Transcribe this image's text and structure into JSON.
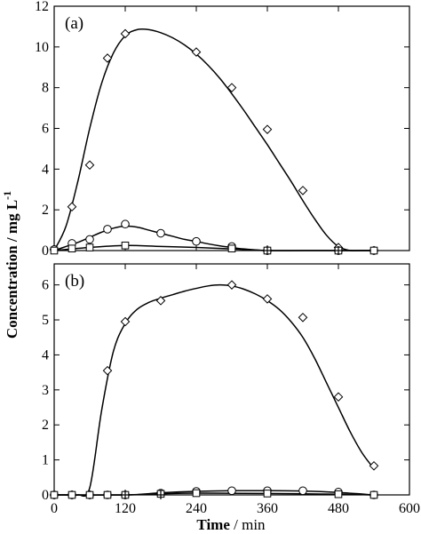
{
  "chart_data": [
    {
      "panel": "a",
      "label": "(a)",
      "type": "scatter",
      "xlim": [
        0,
        600
      ],
      "ylim": [
        0,
        12
      ],
      "xticks": [
        0,
        120,
        240,
        360,
        480,
        600
      ],
      "yticks": [
        0,
        2,
        4,
        6,
        8,
        10,
        12
      ],
      "ytick_labels": [
        "0",
        "2",
        "4",
        "6",
        "8",
        "10",
        "12"
      ],
      "series": [
        {
          "marker": "diamond",
          "x": [
            0,
            30,
            60,
            90,
            120,
            240,
            300,
            360,
            420,
            480,
            540
          ],
          "y": [
            0.05,
            2.15,
            4.2,
            9.45,
            10.65,
            9.75,
            8.0,
            5.95,
            2.95,
            0.15,
            0.0
          ],
          "curve_x": [
            0,
            20,
            40,
            60,
            80,
            100,
            120,
            140,
            160,
            180,
            200,
            220,
            240,
            260,
            280,
            300,
            320,
            340,
            360,
            380,
            400,
            420,
            440,
            460,
            480,
            500,
            520,
            540
          ],
          "curve_y": [
            0.0,
            1.2,
            3.4,
            6.0,
            8.2,
            9.7,
            10.55,
            10.85,
            10.85,
            10.7,
            10.45,
            10.1,
            9.65,
            9.1,
            8.45,
            7.7,
            6.9,
            6.05,
            5.2,
            4.3,
            3.4,
            2.45,
            1.55,
            0.75,
            0.2,
            0.0,
            0.0,
            0.0
          ]
        },
        {
          "marker": "circle",
          "x": [
            0,
            30,
            60,
            90,
            120,
            180,
            240,
            300,
            360,
            480,
            540
          ],
          "y": [
            0.05,
            0.35,
            0.55,
            1.05,
            1.3,
            0.85,
            0.45,
            0.2,
            0.0,
            0.0,
            0.0
          ],
          "curve_x": [
            0,
            20,
            40,
            60,
            80,
            100,
            120,
            140,
            160,
            180,
            200,
            220,
            240,
            260,
            280,
            300,
            320,
            340,
            360,
            380,
            400,
            420,
            440,
            460,
            480,
            500,
            520,
            540
          ],
          "curve_y": [
            0.0,
            0.2,
            0.4,
            0.65,
            0.9,
            1.1,
            1.2,
            1.15,
            1.0,
            0.85,
            0.7,
            0.55,
            0.45,
            0.33,
            0.23,
            0.15,
            0.08,
            0.03,
            0.0,
            0.0,
            0.0,
            0.0,
            0.0,
            0.0,
            0.0,
            0.0,
            0.0,
            0.0
          ]
        },
        {
          "marker": "square",
          "x": [
            0,
            30,
            60,
            120,
            300,
            360,
            480,
            540
          ],
          "y": [
            0.0,
            0.1,
            0.15,
            0.25,
            0.1,
            0.0,
            0.0,
            0.0
          ],
          "curve_x": [
            0,
            60,
            120,
            180,
            240,
            300,
            360,
            420,
            480,
            540
          ],
          "curve_y": [
            0.0,
            0.15,
            0.25,
            0.2,
            0.15,
            0.08,
            0.0,
            0.0,
            0.0,
            0.0
          ]
        },
        {
          "marker": "plus",
          "x": [
            360,
            480
          ],
          "y": [
            0.0,
            0.0
          ],
          "curve_x": [],
          "curve_y": []
        }
      ]
    },
    {
      "panel": "b",
      "label": "(b)",
      "type": "scatter",
      "xlim": [
        0,
        600
      ],
      "ylim": [
        0,
        6.6
      ],
      "xticks": [
        0,
        120,
        240,
        360,
        480,
        600
      ],
      "xtick_labels": [
        "0",
        "120",
        "240",
        "360",
        "480",
        "600"
      ],
      "yticks": [
        0,
        1,
        2,
        3,
        4,
        5,
        6
      ],
      "ytick_labels": [
        "0",
        "1",
        "2",
        "3",
        "4",
        "5",
        "6"
      ],
      "series": [
        {
          "marker": "diamond",
          "x": [
            0,
            30,
            60,
            90,
            120,
            180,
            300,
            360,
            420,
            480,
            540
          ],
          "y": [
            0.0,
            0.0,
            0.0,
            3.55,
            4.95,
            5.55,
            6.0,
            5.6,
            5.07,
            2.8,
            0.83
          ],
          "curve_x": [
            0,
            20,
            40,
            60,
            80,
            100,
            120,
            140,
            160,
            180,
            200,
            220,
            240,
            260,
            280,
            300,
            320,
            340,
            360,
            380,
            400,
            420,
            440,
            460,
            480,
            500,
            520,
            540
          ],
          "curve_y": [
            0.0,
            0.0,
            0.0,
            0.2,
            2.4,
            4.1,
            4.9,
            5.3,
            5.5,
            5.62,
            5.72,
            5.82,
            5.9,
            5.97,
            6.0,
            5.97,
            5.88,
            5.74,
            5.55,
            5.3,
            4.95,
            4.5,
            3.9,
            3.2,
            2.5,
            1.8,
            1.2,
            0.75
          ]
        },
        {
          "marker": "circle",
          "x": [
            0,
            30,
            60,
            90,
            120,
            180,
            240,
            300,
            360,
            420,
            480,
            540
          ],
          "y": [
            0.0,
            0.0,
            0.0,
            0.0,
            0.0,
            0.05,
            0.1,
            0.12,
            0.12,
            0.12,
            0.08,
            0.0
          ],
          "curve_x": [
            0,
            120,
            180,
            240,
            300,
            360,
            420,
            480,
            540
          ],
          "curve_y": [
            0.0,
            0.0,
            0.06,
            0.1,
            0.12,
            0.12,
            0.11,
            0.07,
            0.0
          ]
        },
        {
          "marker": "square",
          "x": [
            0,
            30,
            60,
            90,
            120,
            180,
            240,
            360,
            480,
            540
          ],
          "y": [
            0.0,
            0.0,
            0.0,
            0.0,
            0.0,
            0.03,
            0.05,
            0.04,
            0.02,
            0.0
          ],
          "curve_x": [
            0,
            120,
            180,
            240,
            360,
            480,
            540
          ],
          "curve_y": [
            0.0,
            0.0,
            0.03,
            0.05,
            0.04,
            0.02,
            0.0
          ]
        },
        {
          "marker": "plus",
          "x": [
            120,
            180
          ],
          "y": [
            0.0,
            0.0
          ],
          "curve_x": [],
          "curve_y": []
        }
      ]
    }
  ],
  "ylabel_main": "Concentration / mg L",
  "ylabel_superscript": "-1",
  "xlabel_bold": "Time",
  "xlabel_rest": " / min"
}
